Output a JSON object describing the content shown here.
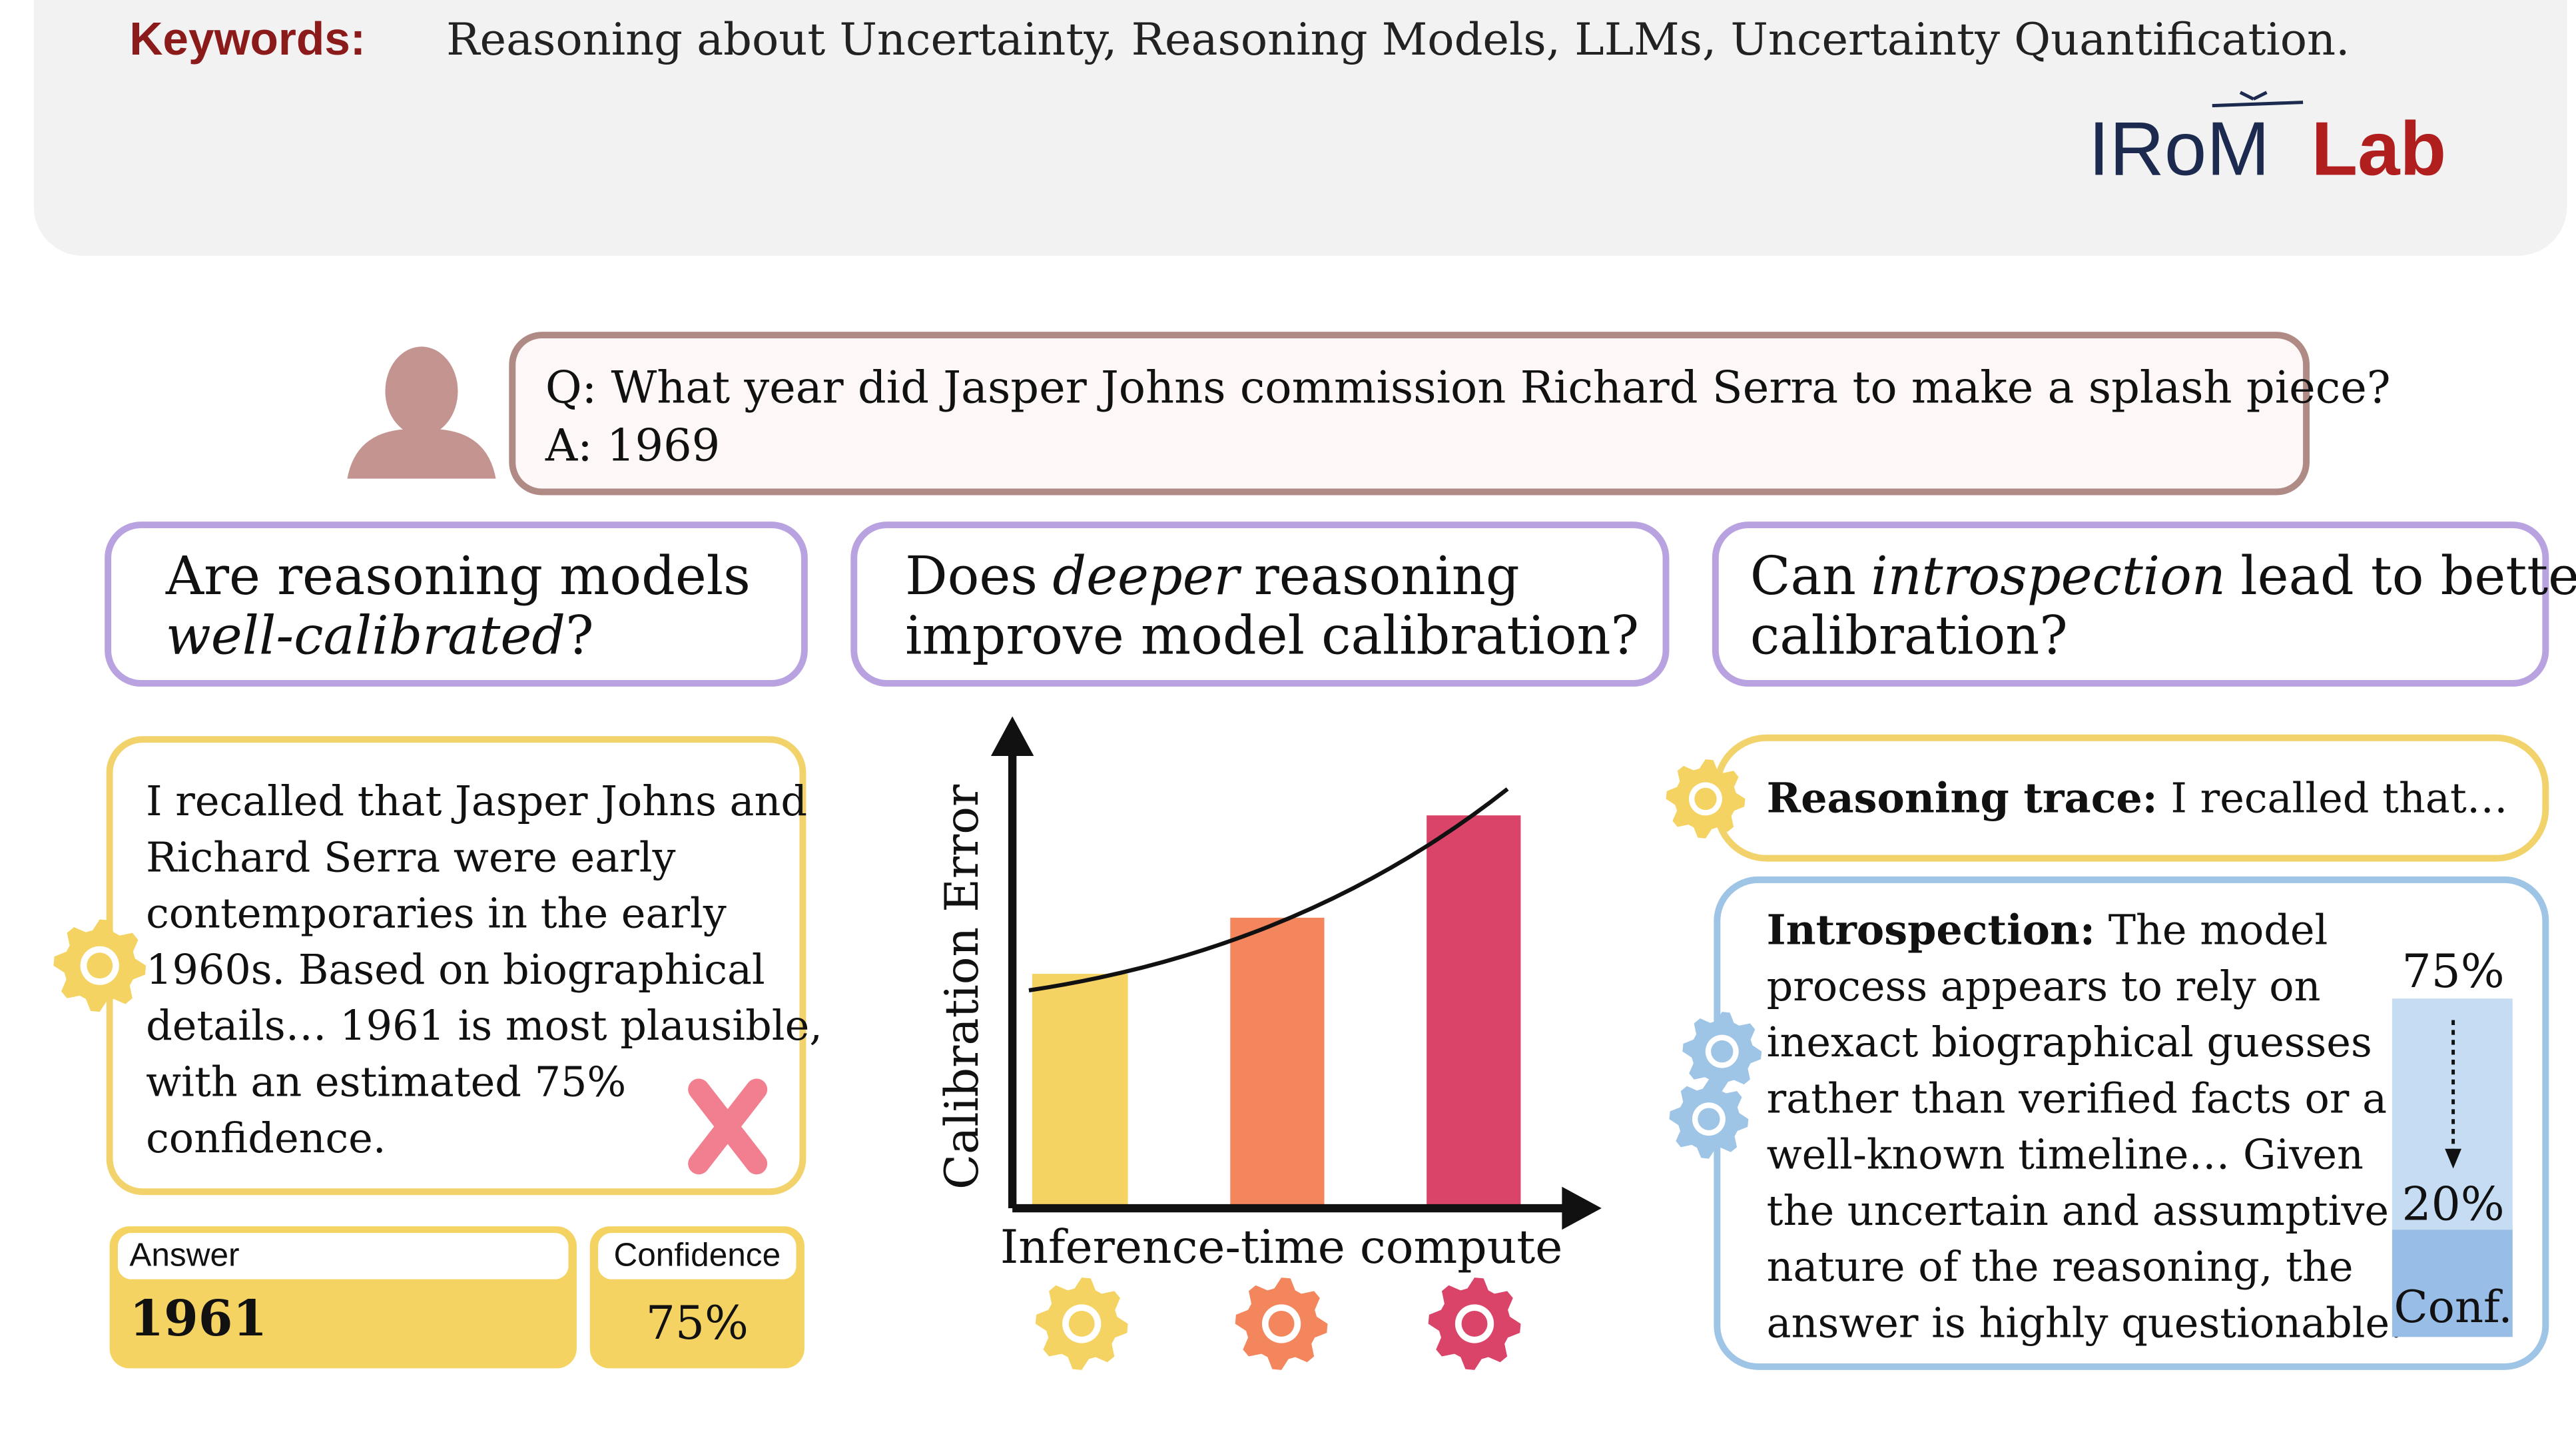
{
  "keywords": {
    "label": "Keywords:",
    "text": "Reasoning about Uncertainty, Reasoning Models, LLMs, Uncertainty Quantification."
  },
  "logo": {
    "left": "IRoM",
    "right": "Lab"
  },
  "prompt": {
    "question": "Q: What year did Jasper Johns commission Richard Serra to make a splash piece?",
    "answer": "A: 1969"
  },
  "panels": [
    {
      "title": [
        [
          "Are reasoning models"
        ],
        [
          "well-calibrated",
          "?"
        ]
      ],
      "reasoning": [
        "I recalled that Jasper Johns and",
        "Richard Serra were early",
        "contemporaries in the early",
        "1960s. Based on biographical",
        "details… 1961 is most plausible,",
        "with an estimated 75%",
        "confidence."
      ],
      "answer": {
        "label": "Answer",
        "value": "1961"
      },
      "confidence": {
        "label": "Confidence",
        "value": "75%"
      }
    },
    {
      "title": [
        [
          "Does",
          "deeper",
          "reasoning"
        ],
        [
          "improve model calibration?"
        ]
      ],
      "y_label": "Calibration Error",
      "x_label": "Inference-time compute"
    },
    {
      "title": [
        [
          "Can",
          "introspection",
          "lead to better"
        ],
        [
          "calibration?"
        ]
      ],
      "trace": {
        "label": "Reasoning trace:",
        "text": "I recalled that…"
      },
      "introspection": {
        "label": "Introspection:",
        "lines": [
          "The model",
          "process appears to rely on",
          "inexact biographical guesses",
          "rather than verified facts or a",
          "well-known timeline… Given",
          "the uncertain and assumptive",
          "nature of the reasoning, the",
          "answer is highly questionable."
        ]
      },
      "confidence_before": "75%",
      "confidence_after": "20%",
      "confidence_label": "Conf."
    }
  ]
}
